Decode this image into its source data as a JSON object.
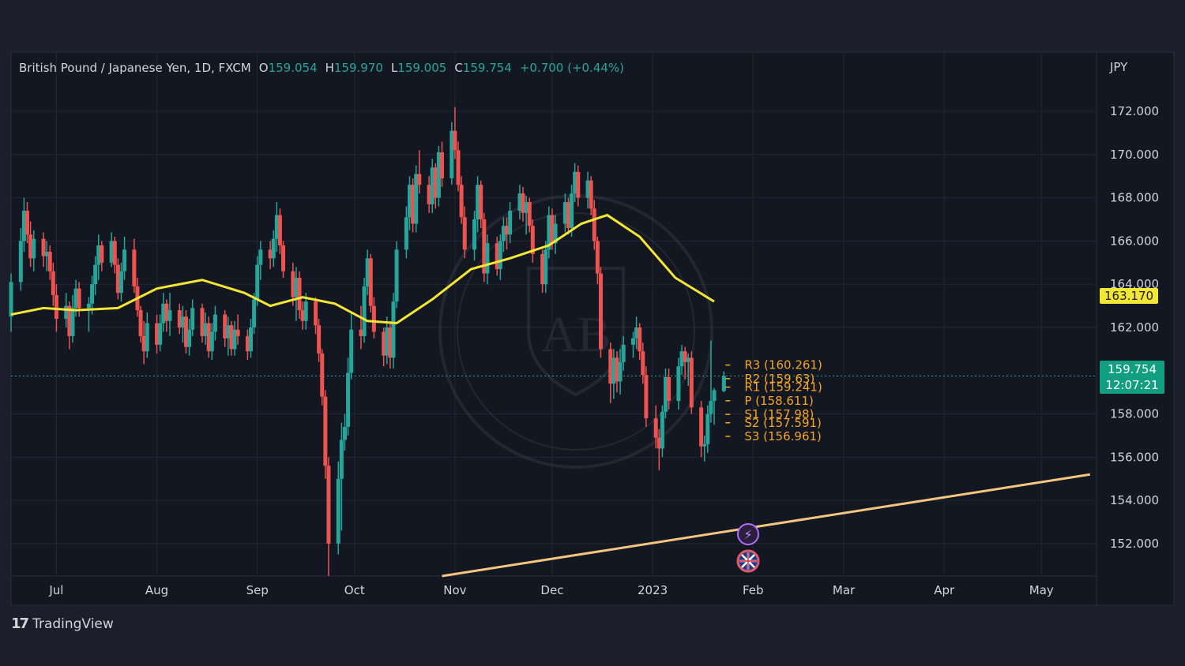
{
  "header": {
    "symbol": "British Pound / Japanese Yen, 1D, FXCM",
    "open_label": "O",
    "open": "159.054",
    "high_label": "H",
    "high": "159.970",
    "low_label": "L",
    "low": "159.005",
    "close_label": "C",
    "close": "159.754",
    "change": "+0.700 (+0.44%)",
    "currency": "JPY"
  },
  "price_tags": {
    "ma_value": "163.170",
    "last_price": "159.754",
    "countdown": "12:07:21"
  },
  "footer": {
    "brand_mark": "17",
    "brand": "TradingView"
  },
  "colors": {
    "background": "#1c1f2b",
    "up": "#26a69a",
    "down": "#ef5350",
    "moving_average": "#f3e635",
    "pivot_levels": "#f5a623",
    "trendline": "#f5c77e"
  },
  "chart_data": {
    "type": "candlestick",
    "y_axis": {
      "ticks": [
        "172.000",
        "170.000",
        "168.000",
        "166.000",
        "164.000",
        "162.000",
        "158.000",
        "156.000",
        "154.000",
        "152.000"
      ],
      "ylim": [
        150.5,
        173.5
      ]
    },
    "x_axis": {
      "ticks": [
        {
          "label": "Jul",
          "date": "2022-07-01"
        },
        {
          "label": "Aug",
          "date": "2022-08-01"
        },
        {
          "label": "Sep",
          "date": "2022-09-01"
        },
        {
          "label": "Oct",
          "date": "2022-10-01"
        },
        {
          "label": "Nov",
          "date": "2022-11-01"
        },
        {
          "label": "Dec",
          "date": "2022-12-01"
        },
        {
          "label": "2023",
          "date": "2023-01-01"
        },
        {
          "label": "Feb",
          "date": "2023-02-01"
        },
        {
          "label": "Mar",
          "date": "2023-03-01"
        },
        {
          "label": "Apr",
          "date": "2023-04-01"
        },
        {
          "label": "May",
          "date": "2023-05-01"
        }
      ],
      "xlim": [
        "2022-06-17",
        "2023-05-18"
      ]
    },
    "pivot_levels": [
      {
        "label": "R3 (160.261)",
        "value": 160.261
      },
      {
        "label": "R2 (159.63)",
        "value": 159.63
      },
      {
        "label": "R1 (159.241)",
        "value": 159.241
      },
      {
        "label": "P (158.611)",
        "value": 158.611
      },
      {
        "label": "S1 (157.98)",
        "value": 157.98
      },
      {
        "label": "S2 (157.591)",
        "value": 157.591
      },
      {
        "label": "S3 (156.961)",
        "value": 156.961
      }
    ],
    "last_price": 159.754,
    "trendline": {
      "from": [
        "2022-10-28",
        150.5
      ],
      "to": [
        "2023-05-16",
        155.2
      ]
    },
    "moving_average": [
      [
        "2022-06-17",
        162.6
      ],
      [
        "2022-06-27",
        162.9
      ],
      [
        "2022-07-07",
        162.8
      ],
      [
        "2022-07-20",
        162.9
      ],
      [
        "2022-08-01",
        163.8
      ],
      [
        "2022-08-15",
        164.2
      ],
      [
        "2022-08-28",
        163.6
      ],
      [
        "2022-09-05",
        163.0
      ],
      [
        "2022-09-15",
        163.4
      ],
      [
        "2022-09-25",
        163.1
      ],
      [
        "2022-10-05",
        162.3
      ],
      [
        "2022-10-14",
        162.2
      ],
      [
        "2022-10-25",
        163.3
      ],
      [
        "2022-11-06",
        164.7
      ],
      [
        "2022-11-18",
        165.2
      ],
      [
        "2022-11-30",
        165.8
      ],
      [
        "2022-12-10",
        166.8
      ],
      [
        "2022-12-18",
        167.2
      ],
      [
        "2022-12-28",
        166.2
      ],
      [
        "2023-01-08",
        164.3
      ],
      [
        "2023-01-20",
        163.2
      ]
    ],
    "candles": [
      [
        "2022-06-17",
        162.5,
        164.5,
        161.8,
        164.1
      ],
      [
        "2022-06-20",
        164.1,
        166.6,
        163.7,
        166.0
      ],
      [
        "2022-06-21",
        166.0,
        168.0,
        165.5,
        167.4
      ],
      [
        "2022-06-22",
        167.4,
        167.8,
        165.9,
        166.3
      ],
      [
        "2022-06-23",
        166.3,
        166.9,
        164.8,
        165.2
      ],
      [
        "2022-06-24",
        165.2,
        166.5,
        164.6,
        166.1
      ],
      [
        "2022-06-27",
        166.1,
        166.4,
        164.8,
        165.3
      ],
      [
        "2022-06-28",
        165.3,
        166.0,
        164.6,
        165.5
      ],
      [
        "2022-06-29",
        165.5,
        165.8,
        164.2,
        164.6
      ],
      [
        "2022-06-30",
        164.6,
        165.0,
        163.0,
        163.5
      ],
      [
        "2022-07-01",
        163.5,
        164.0,
        161.8,
        162.4
      ],
      [
        "2022-07-04",
        162.4,
        163.6,
        162.0,
        163.0
      ],
      [
        "2022-07-05",
        163.0,
        163.2,
        161.0,
        161.6
      ],
      [
        "2022-07-06",
        161.6,
        163.5,
        161.3,
        162.9
      ],
      [
        "2022-07-07",
        162.9,
        164.2,
        162.5,
        163.8
      ],
      [
        "2022-07-08",
        163.8,
        164.1,
        162.5,
        162.9
      ],
      [
        "2022-07-11",
        162.9,
        163.4,
        161.8,
        163.1
      ],
      [
        "2022-07-12",
        163.1,
        164.4,
        162.6,
        164.0
      ],
      [
        "2022-07-13",
        164.0,
        165.3,
        163.5,
        164.9
      ],
      [
        "2022-07-14",
        164.9,
        166.3,
        164.2,
        165.8
      ],
      [
        "2022-07-15",
        165.8,
        166.0,
        164.6,
        165.0
      ],
      [
        "2022-07-18",
        165.0,
        166.4,
        164.8,
        166.0
      ],
      [
        "2022-07-19",
        166.0,
        166.2,
        164.5,
        164.9
      ],
      [
        "2022-07-20",
        164.9,
        165.2,
        163.3,
        163.6
      ],
      [
        "2022-07-21",
        163.6,
        165.0,
        163.2,
        164.6
      ],
      [
        "2022-07-22",
        164.6,
        166.2,
        164.2,
        165.6
      ],
      [
        "2022-07-25",
        165.6,
        166.1,
        163.6,
        163.9
      ],
      [
        "2022-07-26",
        163.9,
        164.3,
        162.5,
        162.8
      ],
      [
        "2022-07-27",
        162.8,
        163.0,
        161.3,
        161.6
      ],
      [
        "2022-07-28",
        161.6,
        162.3,
        160.3,
        160.9
      ],
      [
        "2022-07-29",
        160.9,
        162.7,
        160.6,
        162.2
      ],
      [
        "2022-08-01",
        162.2,
        162.6,
        160.8,
        161.2
      ],
      [
        "2022-08-02",
        161.2,
        162.6,
        160.9,
        162.2
      ],
      [
        "2022-08-03",
        162.2,
        163.6,
        161.8,
        163.1
      ],
      [
        "2022-08-04",
        163.1,
        163.3,
        161.8,
        162.3
      ],
      [
        "2022-08-05",
        162.3,
        163.6,
        161.6,
        162.8
      ],
      [
        "2022-08-08",
        162.8,
        163.1,
        161.7,
        162.0
      ],
      [
        "2022-08-09",
        162.0,
        163.0,
        161.3,
        162.5
      ],
      [
        "2022-08-10",
        162.5,
        162.8,
        160.8,
        161.1
      ],
      [
        "2022-08-11",
        161.1,
        162.4,
        160.7,
        161.9
      ],
      [
        "2022-08-12",
        161.9,
        163.3,
        161.6,
        162.9
      ],
      [
        "2022-08-15",
        162.9,
        163.1,
        161.3,
        161.6
      ],
      [
        "2022-08-16",
        161.6,
        162.7,
        161.2,
        162.2
      ],
      [
        "2022-08-17",
        162.2,
        162.5,
        160.6,
        160.9
      ],
      [
        "2022-08-18",
        160.9,
        162.2,
        160.5,
        161.8
      ],
      [
        "2022-08-19",
        161.8,
        163.0,
        161.4,
        162.6
      ],
      [
        "2022-08-22",
        162.6,
        162.8,
        161.1,
        161.5
      ],
      [
        "2022-08-23",
        161.5,
        162.5,
        160.7,
        162.1
      ],
      [
        "2022-08-24",
        162.1,
        162.3,
        160.7,
        161.0
      ],
      [
        "2022-08-25",
        161.0,
        162.3,
        160.7,
        161.9
      ],
      [
        "2022-08-26",
        161.9,
        162.6,
        161.2,
        161.6
      ],
      [
        "2022-08-29",
        161.6,
        161.9,
        160.5,
        160.9
      ],
      [
        "2022-08-30",
        160.9,
        162.4,
        160.6,
        162.0
      ],
      [
        "2022-08-31",
        162.0,
        163.6,
        161.7,
        163.3
      ],
      [
        "2022-09-01",
        163.3,
        165.3,
        163.0,
        164.9
      ],
      [
        "2022-09-02",
        164.9,
        166.0,
        164.2,
        165.6
      ],
      [
        "2022-09-05",
        165.6,
        166.0,
        164.7,
        165.2
      ],
      [
        "2022-09-06",
        165.2,
        166.5,
        164.8,
        166.1
      ],
      [
        "2022-09-07",
        166.1,
        167.8,
        165.5,
        167.2
      ],
      [
        "2022-09-08",
        167.2,
        167.5,
        165.4,
        165.8
      ],
      [
        "2022-09-09",
        165.8,
        166.0,
        164.3,
        164.6
      ],
      [
        "2022-09-12",
        164.6,
        165.0,
        163.0,
        163.4
      ],
      [
        "2022-09-13",
        163.4,
        164.8,
        162.3,
        164.3
      ],
      [
        "2022-09-14",
        164.3,
        164.6,
        162.4,
        162.8
      ],
      [
        "2022-09-15",
        162.8,
        163.2,
        161.9,
        162.3
      ],
      [
        "2022-09-16",
        162.3,
        163.6,
        161.9,
        163.2
      ],
      [
        "2022-09-19",
        163.2,
        163.4,
        161.7,
        162.1
      ],
      [
        "2022-09-20",
        162.1,
        162.4,
        160.4,
        160.8
      ],
      [
        "2022-09-21",
        160.8,
        161.0,
        158.4,
        158.8
      ],
      [
        "2022-09-22",
        158.8,
        159.1,
        155.0,
        155.6
      ],
      [
        "2022-09-23",
        155.6,
        156.0,
        150.5,
        152.0
      ],
      [
        "2022-09-26",
        152.0,
        155.8,
        151.5,
        155.0
      ],
      [
        "2022-09-27",
        155.0,
        157.6,
        152.6,
        156.8
      ],
      [
        "2022-09-28",
        156.8,
        158.0,
        156.3,
        157.4
      ],
      [
        "2022-09-29",
        157.4,
        160.6,
        157.0,
        159.9
      ],
      [
        "2022-09-30",
        159.9,
        162.7,
        159.6,
        161.9
      ],
      [
        "2022-10-03",
        161.9,
        163.0,
        161.0,
        161.6
      ],
      [
        "2022-10-04",
        161.6,
        164.3,
        161.3,
        163.9
      ],
      [
        "2022-10-05",
        163.9,
        165.6,
        163.5,
        165.2
      ],
      [
        "2022-10-06",
        165.2,
        165.4,
        162.7,
        163.0
      ],
      [
        "2022-10-07",
        163.0,
        163.4,
        161.5,
        161.8
      ],
      [
        "2022-10-10",
        161.8,
        162.0,
        160.2,
        160.7
      ],
      [
        "2022-10-11",
        160.7,
        162.5,
        160.3,
        162.0
      ],
      [
        "2022-10-12",
        162.0,
        162.3,
        160.1,
        160.6
      ],
      [
        "2022-10-13",
        160.6,
        163.6,
        160.1,
        163.2
      ],
      [
        "2022-10-14",
        163.2,
        166.0,
        162.9,
        165.6
      ],
      [
        "2022-10-17",
        165.6,
        167.6,
        165.2,
        167.1
      ],
      [
        "2022-10-18",
        167.1,
        169.0,
        166.5,
        168.6
      ],
      [
        "2022-10-19",
        168.6,
        168.9,
        166.4,
        166.8
      ],
      [
        "2022-10-20",
        166.8,
        169.5,
        166.4,
        169.1
      ],
      [
        "2022-10-21",
        169.1,
        170.2,
        168.2,
        168.6
      ],
      [
        "2022-10-24",
        168.6,
        169.0,
        167.3,
        167.7
      ],
      [
        "2022-10-25",
        167.7,
        169.8,
        167.3,
        169.4
      ],
      [
        "2022-10-26",
        169.4,
        169.6,
        167.5,
        168.0
      ],
      [
        "2022-10-27",
        168.0,
        170.4,
        167.6,
        170.1
      ],
      [
        "2022-10-28",
        170.1,
        170.6,
        168.5,
        168.9
      ],
      [
        "2022-10-31",
        168.9,
        171.5,
        168.6,
        171.1
      ],
      [
        "2022-11-01",
        171.1,
        172.2,
        169.8,
        170.2
      ],
      [
        "2022-11-02",
        170.2,
        170.6,
        168.3,
        168.6
      ],
      [
        "2022-11-03",
        168.6,
        169.0,
        166.8,
        167.1
      ],
      [
        "2022-11-04",
        167.1,
        167.6,
        165.2,
        165.6
      ],
      [
        "2022-11-07",
        165.6,
        167.4,
        165.1,
        167.0
      ],
      [
        "2022-11-08",
        167.0,
        169.0,
        166.4,
        168.6
      ],
      [
        "2022-11-09",
        168.6,
        168.8,
        166.6,
        167.0
      ],
      [
        "2022-11-10",
        167.0,
        167.3,
        164.1,
        164.5
      ],
      [
        "2022-11-11",
        164.5,
        166.3,
        164.0,
        165.9
      ],
      [
        "2022-11-14",
        165.9,
        166.2,
        164.4,
        164.7
      ],
      [
        "2022-11-15",
        164.7,
        166.3,
        164.2,
        166.0
      ],
      [
        "2022-11-16",
        166.0,
        167.1,
        165.5,
        166.7
      ],
      [
        "2022-11-17",
        166.7,
        167.1,
        165.6,
        166.3
      ],
      [
        "2022-11-18",
        166.3,
        167.8,
        165.9,
        167.4
      ],
      [
        "2022-11-21",
        167.4,
        168.6,
        167.0,
        168.2
      ],
      [
        "2022-11-22",
        168.2,
        168.5,
        166.9,
        167.3
      ],
      [
        "2022-11-23",
        167.3,
        168.1,
        166.3,
        167.8
      ],
      [
        "2022-11-24",
        167.8,
        168.0,
        166.4,
        166.7
      ],
      [
        "2022-11-25",
        166.7,
        167.0,
        165.0,
        165.4
      ],
      [
        "2022-11-28",
        165.4,
        165.6,
        163.6,
        164.0
      ],
      [
        "2022-11-29",
        164.0,
        166.0,
        163.6,
        165.6
      ],
      [
        "2022-11-30",
        165.6,
        167.6,
        165.2,
        167.2
      ],
      [
        "2022-12-01",
        167.2,
        167.5,
        165.6,
        165.9
      ],
      [
        "2022-12-02",
        165.9,
        167.2,
        165.4,
        166.8
      ],
      [
        "2022-12-05",
        166.8,
        168.2,
        166.4,
        167.8
      ],
      [
        "2022-12-06",
        167.8,
        168.0,
        166.3,
        166.6
      ],
      [
        "2022-12-07",
        166.6,
        168.6,
        166.2,
        168.2
      ],
      [
        "2022-12-08",
        168.2,
        169.6,
        167.8,
        169.2
      ],
      [
        "2022-12-09",
        169.2,
        169.5,
        167.6,
        168.0
      ],
      [
        "2022-12-12",
        168.0,
        169.2,
        167.5,
        168.8
      ],
      [
        "2022-12-13",
        168.8,
        169.0,
        167.2,
        167.5
      ],
      [
        "2022-12-14",
        167.5,
        167.9,
        165.6,
        166.0
      ],
      [
        "2022-12-15",
        166.0,
        166.2,
        164.0,
        164.5
      ],
      [
        "2022-12-16",
        164.5,
        164.8,
        160.6,
        161.0
      ],
      [
        "2022-12-19",
        161.0,
        161.3,
        158.5,
        159.4
      ],
      [
        "2022-12-20",
        159.4,
        161.0,
        158.7,
        160.6
      ],
      [
        "2022-12-21",
        160.6,
        160.9,
        159.0,
        159.5
      ],
      [
        "2022-12-22",
        159.5,
        161.0,
        158.9,
        160.4
      ],
      [
        "2022-12-23",
        160.4,
        161.6,
        160.0,
        161.2
      ],
      [
        "2022-12-26",
        161.2,
        161.8,
        160.6,
        161.5
      ],
      [
        "2022-12-27",
        161.5,
        162.5,
        161.0,
        162.0
      ],
      [
        "2022-12-28",
        162.0,
        162.2,
        160.5,
        160.9
      ],
      [
        "2022-12-29",
        160.9,
        161.3,
        159.4,
        159.8
      ],
      [
        "2022-12-30",
        159.8,
        160.2,
        157.4,
        157.8
      ],
      [
        "2023-01-02",
        157.8,
        158.4,
        156.4,
        156.9
      ],
      [
        "2023-01-03",
        156.9,
        157.3,
        155.4,
        156.4
      ],
      [
        "2023-01-04",
        156.4,
        158.4,
        156.0,
        158.1
      ],
      [
        "2023-01-05",
        158.1,
        160.1,
        157.8,
        159.7
      ],
      [
        "2023-01-06",
        159.7,
        160.1,
        158.2,
        158.6
      ],
      [
        "2023-01-09",
        158.6,
        160.6,
        158.2,
        160.2
      ],
      [
        "2023-01-10",
        160.2,
        161.2,
        159.8,
        160.9
      ],
      [
        "2023-01-11",
        160.9,
        161.1,
        159.6,
        160.4
      ],
      [
        "2023-01-12",
        160.4,
        160.8,
        159.3,
        160.6
      ],
      [
        "2023-01-13",
        160.6,
        160.9,
        158.0,
        158.3
      ],
      [
        "2023-01-16",
        158.3,
        158.6,
        156.0,
        156.5
      ],
      [
        "2023-01-17",
        156.5,
        157.0,
        155.8,
        156.6
      ],
      [
        "2023-01-18",
        156.6,
        158.4,
        156.2,
        158.0
      ],
      [
        "2023-01-19",
        158.0,
        161.4,
        157.6,
        158.6
      ],
      [
        "2023-01-20",
        158.6,
        159.2,
        157.5,
        159.1
      ],
      [
        "2023-01-23",
        159.054,
        159.97,
        159.005,
        159.754
      ]
    ]
  }
}
